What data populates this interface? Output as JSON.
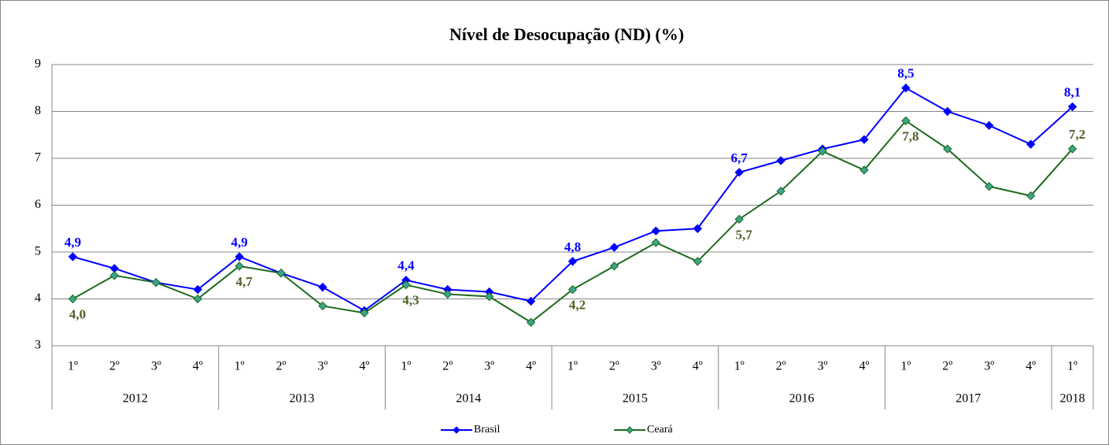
{
  "chart_data": {
    "type": "line",
    "title": "Nível de Desocupação (ND) (%)",
    "categories": [
      "1º",
      "2º",
      "3º",
      "4º",
      "1º",
      "2º",
      "3º",
      "4º",
      "1º",
      "2º",
      "3º",
      "4º",
      "1º",
      "2º",
      "3º",
      "4º",
      "1º",
      "2º",
      "3º",
      "4º",
      "1º",
      "2º",
      "3º",
      "4º",
      "1º"
    ],
    "year_groups": [
      {
        "label": "2012",
        "count": 4
      },
      {
        "label": "2013",
        "count": 4
      },
      {
        "label": "2014",
        "count": 4
      },
      {
        "label": "2015",
        "count": 4
      },
      {
        "label": "2016",
        "count": 4
      },
      {
        "label": "2017",
        "count": 4
      },
      {
        "label": "2018",
        "count": 1
      }
    ],
    "series": [
      {
        "name": "Brasil",
        "color": "#0000ff",
        "label_color": "#0000ff",
        "values": [
          4.9,
          4.65,
          4.35,
          4.2,
          4.9,
          4.55,
          4.25,
          3.75,
          4.4,
          4.2,
          4.15,
          3.95,
          4.8,
          5.1,
          5.45,
          5.5,
          6.7,
          6.95,
          7.2,
          7.4,
          8.5,
          8.0,
          7.7,
          7.3,
          8.1
        ],
        "value_labels": [
          "4,9",
          null,
          null,
          null,
          "4,9",
          null,
          null,
          null,
          "4,4",
          null,
          null,
          null,
          "4,8",
          null,
          null,
          null,
          "6,7",
          null,
          null,
          null,
          "8,5",
          null,
          null,
          null,
          "8,1"
        ]
      },
      {
        "name": "Ceará",
        "color": "#1e6b1e",
        "marker_color": "#3aa58a",
        "label_color": "#4f6228",
        "values": [
          4.0,
          4.5,
          4.35,
          4.0,
          4.7,
          4.55,
          3.85,
          3.7,
          4.3,
          4.1,
          4.05,
          3.5,
          4.2,
          4.7,
          5.2,
          4.8,
          5.7,
          6.3,
          7.15,
          6.75,
          7.8,
          7.2,
          6.4,
          6.2,
          7.2
        ],
        "value_labels": [
          "4,0",
          null,
          null,
          null,
          "4,7",
          null,
          null,
          null,
          "4,3",
          null,
          null,
          null,
          "4,2",
          null,
          null,
          null,
          "5,7",
          null,
          null,
          null,
          "7,8",
          null,
          null,
          null,
          "7,2"
        ]
      }
    ],
    "ylim": [
      3,
      9
    ],
    "yticks": [
      3,
      4,
      5,
      6,
      7,
      8,
      9
    ],
    "grid": true,
    "legend": "bottom"
  }
}
